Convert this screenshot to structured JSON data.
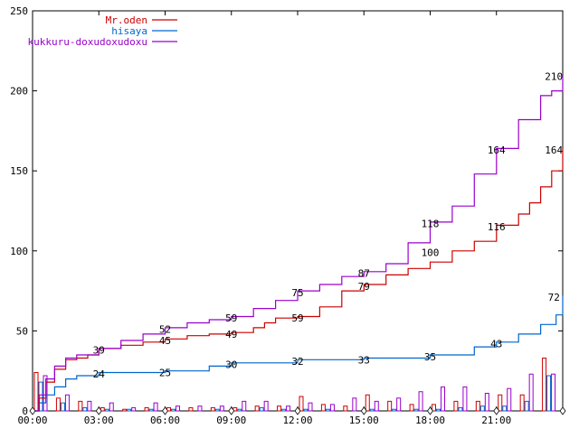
{
  "chart_data": {
    "type": "line",
    "title": "",
    "xlabel": "",
    "ylabel": "",
    "ylim": [
      0,
      250
    ],
    "xlim": [
      0,
      24
    ],
    "grid": false,
    "legend_position": "top-left",
    "y_ticks": [
      0,
      50,
      100,
      150,
      200,
      250
    ],
    "x_ticks": [
      {
        "label": "00:00",
        "value": 0
      },
      {
        "label": "03:00",
        "value": 3
      },
      {
        "label": "06:00",
        "value": 6
      },
      {
        "label": "09:00",
        "value": 9
      },
      {
        "label": "12:00",
        "value": 12
      },
      {
        "label": "15:00",
        "value": 15
      },
      {
        "label": "18:00",
        "value": 18
      },
      {
        "label": "21:00",
        "value": 21
      }
    ],
    "series": [
      {
        "name": "Mr.oden",
        "color": "#cc0000",
        "x": [
          0,
          0.3,
          0.6,
          1.0,
          1.5,
          2.0,
          2.5,
          3.0,
          4.0,
          5.0,
          6.0,
          7.0,
          8.0,
          9.0,
          10.0,
          10.5,
          11.0,
          12.0,
          13.0,
          14.0,
          15.0,
          16.0,
          17.0,
          18.0,
          19.0,
          20.0,
          21.0,
          22.0,
          22.5,
          23.0,
          23.5,
          24.0
        ],
        "y": [
          0,
          8,
          18,
          26,
          32,
          33,
          35,
          39,
          41,
          43,
          45,
          47,
          48,
          49,
          52,
          55,
          58,
          59,
          65,
          75,
          79,
          85,
          89,
          93,
          100,
          106,
          116,
          123,
          130,
          140,
          150,
          164
        ]
      },
      {
        "name": "hisaya",
        "color": "#0066cc",
        "x": [
          0,
          0.3,
          0.6,
          1.0,
          1.5,
          2.0,
          3.0,
          6.0,
          8.0,
          9.0,
          12.0,
          15.0,
          18.0,
          20.0,
          21.0,
          22.0,
          23.0,
          23.7,
          24.0
        ],
        "y": [
          0,
          5,
          10,
          15,
          20,
          22,
          24,
          25,
          28,
          30,
          32,
          33,
          35,
          40,
          43,
          48,
          54,
          60,
          72
        ]
      },
      {
        "name": "kukkuru-doxudoxudoxu",
        "color": "#9900cc",
        "x": [
          0,
          0.3,
          0.6,
          1.0,
          1.5,
          2.0,
          3.0,
          4.0,
          5.0,
          6.0,
          7.0,
          8.0,
          9.0,
          10.0,
          11.0,
          12.0,
          13.0,
          14.0,
          15.0,
          16.0,
          17.0,
          18.0,
          19.0,
          20.0,
          21.0,
          22.0,
          23.0,
          23.5,
          24.0
        ],
        "y": [
          0,
          10,
          20,
          28,
          33,
          35,
          39,
          44,
          48,
          52,
          55,
          57,
          59,
          64,
          69,
          75,
          79,
          84,
          87,
          92,
          105,
          118,
          128,
          148,
          164,
          182,
          197,
          200,
          210
        ]
      }
    ],
    "annotations": [
      {
        "text": "39",
        "x": 3.0,
        "y": 38,
        "series": 0
      },
      {
        "text": "45",
        "x": 6.0,
        "y": 44,
        "series": 0
      },
      {
        "text": "49",
        "x": 9.0,
        "y": 48,
        "series": 0
      },
      {
        "text": "59",
        "x": 12.0,
        "y": 58,
        "series": 0
      },
      {
        "text": "79",
        "x": 15.0,
        "y": 78,
        "series": 0
      },
      {
        "text": "100",
        "x": 18.0,
        "y": 99,
        "series": 0
      },
      {
        "text": "116",
        "x": 21.0,
        "y": 115,
        "series": 0
      },
      {
        "text": "164",
        "x": 23.6,
        "y": 163,
        "series": 0
      },
      {
        "text": "24",
        "x": 3.0,
        "y": 23,
        "series": 1
      },
      {
        "text": "25",
        "x": 6.0,
        "y": 24,
        "series": 1
      },
      {
        "text": "30",
        "x": 9.0,
        "y": 29,
        "series": 1
      },
      {
        "text": "32",
        "x": 12.0,
        "y": 31,
        "series": 1
      },
      {
        "text": "33",
        "x": 15.0,
        "y": 32,
        "series": 1
      },
      {
        "text": "35",
        "x": 18.0,
        "y": 34,
        "series": 1
      },
      {
        "text": "43",
        "x": 21.0,
        "y": 42,
        "series": 1
      },
      {
        "text": "72",
        "x": 23.6,
        "y": 71,
        "series": 1
      },
      {
        "text": "52",
        "x": 6.0,
        "y": 51,
        "series": 2
      },
      {
        "text": "59",
        "x": 9.0,
        "y": 58,
        "series": 2
      },
      {
        "text": "75",
        "x": 12.0,
        "y": 74,
        "series": 2
      },
      {
        "text": "87",
        "x": 15.0,
        "y": 86,
        "series": 2
      },
      {
        "text": "118",
        "x": 18.0,
        "y": 117,
        "series": 2
      },
      {
        "text": "164",
        "x": 21.0,
        "y": 163,
        "series": 2
      },
      {
        "text": "210",
        "x": 23.6,
        "y": 209,
        "series": 2
      }
    ],
    "hourly_bars": {
      "hours": [
        0,
        1,
        2,
        3,
        4,
        5,
        6,
        7,
        8,
        9,
        10,
        11,
        12,
        13,
        14,
        15,
        16,
        17,
        18,
        19,
        20,
        21,
        22,
        23
      ],
      "series": [
        {
          "name": "Mr.oden",
          "values": [
            24,
            8,
            6,
            2,
            1,
            2,
            2,
            2,
            2,
            2,
            3,
            3,
            9,
            4,
            3,
            10,
            6,
            4,
            4,
            6,
            6,
            10,
            10,
            33
          ]
        },
        {
          "name": "hisaya",
          "values": [
            18,
            5,
            2,
            1,
            1,
            1,
            1,
            0,
            1,
            1,
            2,
            1,
            1,
            1,
            0,
            1,
            1,
            1,
            1,
            2,
            3,
            3,
            6,
            22
          ]
        },
        {
          "name": "kukkuru-doxudoxudoxu",
          "values": [
            22,
            10,
            6,
            5,
            2,
            5,
            3,
            3,
            3,
            6,
            6,
            3,
            5,
            4,
            8,
            6,
            8,
            12,
            15,
            15,
            11,
            14,
            23,
            23
          ]
        }
      ]
    },
    "x_markers": [
      0,
      3,
      6,
      9,
      12,
      15,
      18,
      21,
      24
    ]
  }
}
